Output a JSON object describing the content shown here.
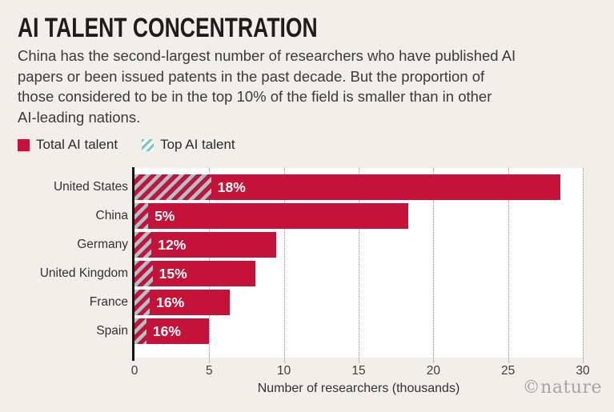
{
  "page": {
    "title": "AI TALENT CONCENTRATION",
    "description_lines": [
      "China has the second-largest number of researchers who have published AI",
      "papers or been issued patents in the past decade. But the proportion of",
      "those considered to be in the top 10% of the field is smaller than in other",
      "AI-leading nations."
    ],
    "watermark": "©nature"
  },
  "legend": {
    "items": [
      {
        "label": "Total AI talent",
        "swatch": "solid-red"
      },
      {
        "label": "Top AI talent",
        "swatch": "teal-hatch"
      }
    ]
  },
  "colors": {
    "background": "#f1efe8",
    "plot_background": "#ffffff",
    "bar_red": "#c41239",
    "hatch_overlay_blue": "#adc1c8",
    "legend_hatch_teal": "#7ec3bd",
    "axis_black": "#141414",
    "gridline_gray": "#8f8f8a"
  },
  "chart_data": {
    "type": "bar",
    "orientation": "horizontal",
    "title": "AI TALENT CONCENTRATION",
    "categories": [
      "United States",
      "China",
      "Germany",
      "United Kingdom",
      "France",
      "Spain"
    ],
    "series": [
      {
        "name": "Total AI talent",
        "unit": "thousands of researchers",
        "values": [
          28.5,
          18.3,
          9.5,
          8.1,
          6.4,
          5.0
        ]
      },
      {
        "name": "Top AI talent",
        "unit": "percent of total",
        "values": [
          18,
          5,
          12,
          15,
          16,
          16
        ]
      }
    ],
    "bar_labels": [
      "18%",
      "5%",
      "12%",
      "15%",
      "16%",
      "16%"
    ],
    "xlabel": "Number of researchers (thousands)",
    "xlim": [
      0,
      30
    ],
    "xticks": [
      0,
      5,
      10,
      15,
      20,
      25,
      30
    ],
    "grid": "vertical-dotted",
    "legend_position": "top-left"
  }
}
